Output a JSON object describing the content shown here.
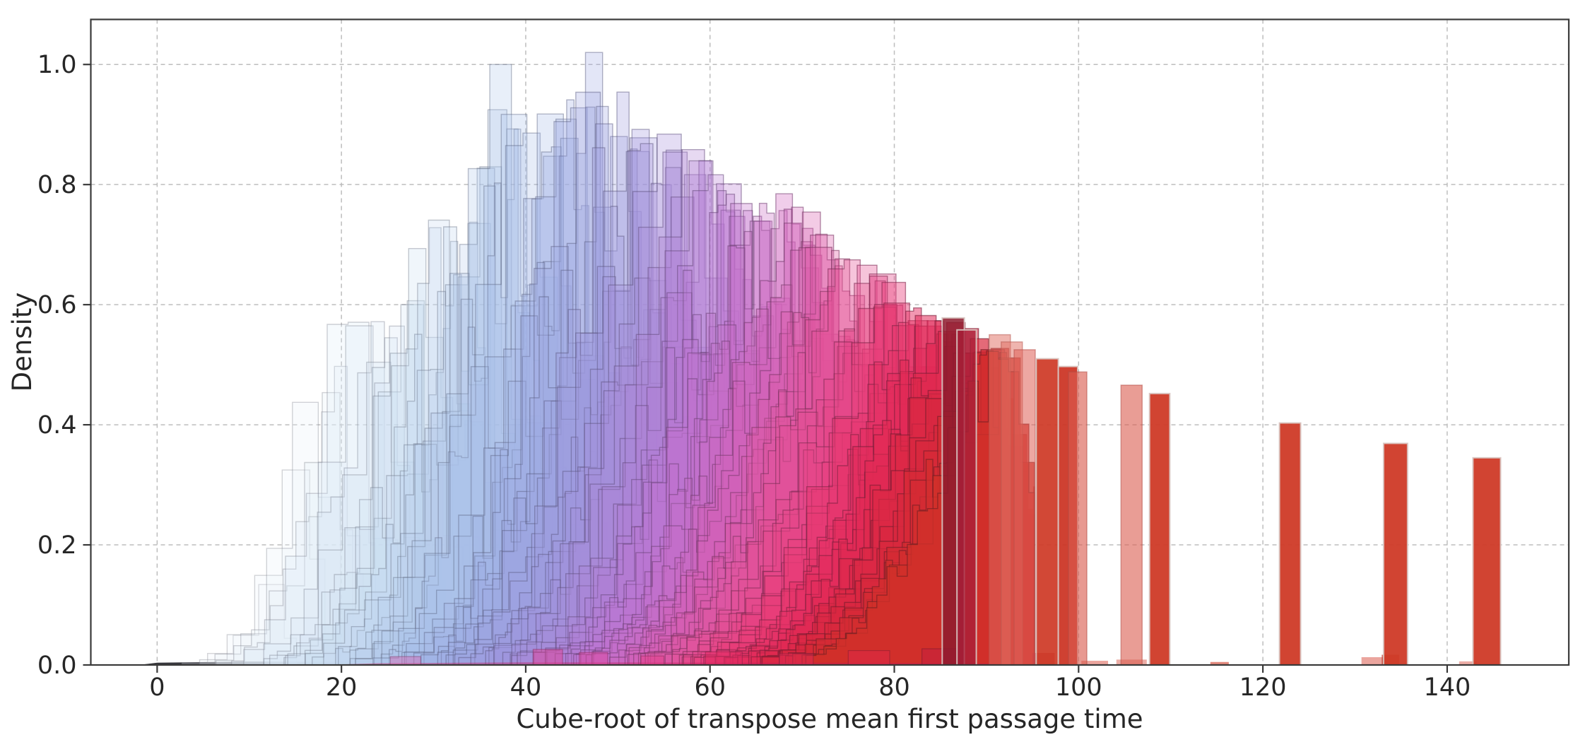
{
  "figure": {
    "background": "#ffffff",
    "spine_color": "#3a3a3a",
    "grid_color": "#bdbdbd",
    "text_color": "#262626"
  },
  "axes": {
    "xlabel": "Cube-root of transpose mean first passage time",
    "ylabel": "Density",
    "x_ticks": [
      0,
      20,
      40,
      60,
      80,
      100,
      120,
      140
    ],
    "x_tick_labels": [
      "0",
      "20",
      "40",
      "60",
      "80",
      "100",
      "120",
      "140"
    ],
    "y_ticks": [
      0.0,
      0.2,
      0.4,
      0.6,
      0.8,
      1.0
    ],
    "y_tick_labels": [
      "0.0",
      "0.2",
      "0.4",
      "0.6",
      "0.8",
      "1.0"
    ],
    "x_range": [
      -7.2,
      153.2
    ],
    "y_range": [
      0,
      1.075
    ],
    "grid": true,
    "grid_style": "dashed"
  },
  "chart_data": {
    "type": "histogram",
    "description": "Many overlapping translucent step-histogram densities, colored along a light-blue to purple to crimson-red colormap as the distribution mean increases; a few degenerate distributions appear as isolated brick-red bars at large x.",
    "n_series": 118,
    "colormap": [
      [
        0.0,
        "#eff5fb"
      ],
      [
        0.08,
        "#e2edf8"
      ],
      [
        0.16,
        "#d2e3f4"
      ],
      [
        0.25,
        "#bcd3ee"
      ],
      [
        0.33,
        "#a9c0e9"
      ],
      [
        0.41,
        "#9dabe3"
      ],
      [
        0.49,
        "#9f97dd"
      ],
      [
        0.56,
        "#ab86d8"
      ],
      [
        0.63,
        "#bd74d0"
      ],
      [
        0.7,
        "#d164bd"
      ],
      [
        0.77,
        "#e2539d"
      ],
      [
        0.84,
        "#e93d79"
      ],
      [
        0.9,
        "#e22a58"
      ],
      [
        0.95,
        "#d92740"
      ],
      [
        1.0,
        "#d03028"
      ]
    ],
    "envelope": [
      [
        4,
        0.004
      ],
      [
        7,
        0.012
      ],
      [
        9,
        0.03
      ],
      [
        11,
        0.07
      ],
      [
        13,
        0.16
      ],
      [
        15,
        0.3
      ],
      [
        17,
        0.42
      ],
      [
        19,
        0.5
      ],
      [
        21,
        0.63
      ],
      [
        23,
        0.6
      ],
      [
        25,
        0.55
      ],
      [
        27,
        0.62
      ],
      [
        29,
        0.7
      ],
      [
        30.5,
        0.81
      ],
      [
        32,
        0.73
      ],
      [
        33.5,
        0.77
      ],
      [
        35,
        0.85
      ],
      [
        36.5,
        0.94
      ],
      [
        37.6,
        1.0
      ],
      [
        38.7,
        1.0
      ],
      [
        40,
        0.93
      ],
      [
        41.5,
        0.945
      ],
      [
        43,
        0.905
      ],
      [
        45,
        0.955
      ],
      [
        47,
        1.01
      ],
      [
        48.5,
        0.985
      ],
      [
        50.5,
        0.965
      ],
      [
        52,
        0.945
      ],
      [
        54,
        0.905
      ],
      [
        56,
        0.885
      ],
      [
        58,
        0.868
      ],
      [
        60,
        0.862
      ],
      [
        62,
        0.845
      ],
      [
        64,
        0.822
      ],
      [
        66,
        0.8
      ],
      [
        68,
        0.783
      ],
      [
        70,
        0.763
      ],
      [
        72,
        0.745
      ],
      [
        74,
        0.728
      ],
      [
        76,
        0.702
      ],
      [
        78,
        0.672
      ],
      [
        80,
        0.636
      ],
      [
        82,
        0.614
      ],
      [
        84,
        0.595
      ],
      [
        86,
        0.578
      ],
      [
        88,
        0.562
      ],
      [
        90,
        0.548
      ],
      [
        92,
        0.534
      ],
      [
        94,
        0.52
      ]
    ],
    "series_model": {
      "seed": 1234,
      "mu_min": 13,
      "mu_max": 92.5,
      "mu_power": 0.72,
      "sigma_base": 3.0,
      "sigma_slope": 0.055,
      "sigma_right_factor": 0.42,
      "left_span_sigmas": 2.6,
      "right_span_sigmas": 1.6,
      "right_cutoff": 95.2,
      "bin_width_min": 0.7,
      "bin_width_max": 3.0,
      "forced_peaks": [
        {
          "mu": 38.0,
          "height": 1.0
        },
        {
          "mu": 47.2,
          "height": 1.02
        }
      ]
    },
    "outlier_bars": [
      {
        "x0": 85.2,
        "x1": 87.6,
        "height": 0.578,
        "color": "#8e1b2e",
        "alpha": 0.85
      },
      {
        "x0": 86.8,
        "x1": 88.9,
        "height": 0.558,
        "color": "#a81f38",
        "alpha": 0.78
      },
      {
        "x0": 90.3,
        "x1": 92.6,
        "height": 0.55,
        "color": "#e06b60",
        "alpha": 0.5
      },
      {
        "x0": 91.6,
        "x1": 93.9,
        "height": 0.538,
        "color": "#e06b60",
        "alpha": 0.5
      },
      {
        "x0": 93.0,
        "x1": 95.3,
        "height": 0.525,
        "color": "#df5f55",
        "alpha": 0.55
      },
      {
        "x0": 95.4,
        "x1": 97.8,
        "height": 0.51,
        "color": "#cf3a27",
        "alpha": 0.93
      },
      {
        "x0": 97.8,
        "x1": 99.9,
        "height": 0.497,
        "color": "#cb3322",
        "alpha": 0.93
      },
      {
        "x0": 98.9,
        "x1": 100.9,
        "height": 0.488,
        "color": "#da5b4e",
        "alpha": 0.62
      },
      {
        "x0": 104.6,
        "x1": 106.9,
        "height": 0.466,
        "color": "#da5b4e",
        "alpha": 0.6
      },
      {
        "x0": 107.7,
        "x1": 109.9,
        "height": 0.452,
        "color": "#cf3a27",
        "alpha": 0.95
      },
      {
        "x0": 121.8,
        "x1": 124.1,
        "height": 0.403,
        "color": "#cf3a27",
        "alpha": 0.95
      },
      {
        "x0": 133.1,
        "x1": 135.7,
        "height": 0.369,
        "color": "#cf3a27",
        "alpha": 0.95
      },
      {
        "x0": 142.8,
        "x1": 145.8,
        "height": 0.345,
        "color": "#cf3a27",
        "alpha": 0.95
      }
    ],
    "base_bumps": [
      {
        "x0": 95.0,
        "x1": 97.4,
        "height": 0.02,
        "color": "#b02336",
        "alpha": 0.7
      },
      {
        "x0": 100.3,
        "x1": 103.2,
        "height": 0.007,
        "color": "#da5b4e",
        "alpha": 0.55
      },
      {
        "x0": 104.1,
        "x1": 107.4,
        "height": 0.009,
        "color": "#da5b4e",
        "alpha": 0.5
      },
      {
        "x0": 114.3,
        "x1": 116.3,
        "height": 0.005,
        "color": "#cf3a27",
        "alpha": 0.6
      },
      {
        "x0": 130.7,
        "x1": 133.2,
        "height": 0.013,
        "color": "#da5b4e",
        "alpha": 0.55
      },
      {
        "x0": 132.9,
        "x1": 134.8,
        "height": 0.017,
        "color": "#bb3629",
        "alpha": 0.7
      },
      {
        "x0": 141.3,
        "x1": 143.2,
        "height": 0.006,
        "color": "#da5b4e",
        "alpha": 0.5
      }
    ],
    "bottom_mounds": [
      {
        "x0": 25.3,
        "x1": 28.6,
        "height": 0.014,
        "color": "#d96ab4",
        "alpha": 0.45
      },
      {
        "x0": 40.8,
        "x1": 44.0,
        "height": 0.026,
        "color": "#e0459a",
        "alpha": 0.5
      },
      {
        "x0": 45.8,
        "x1": 48.9,
        "height": 0.021,
        "color": "#e0459a",
        "alpha": 0.45
      },
      {
        "x0": 52.5,
        "x1": 55.0,
        "height": 0.015,
        "color": "#e23d87",
        "alpha": 0.45
      },
      {
        "x0": 59.5,
        "x1": 63.5,
        "height": 0.022,
        "color": "#e02a62",
        "alpha": 0.5
      },
      {
        "x0": 67.5,
        "x1": 71.2,
        "height": 0.019,
        "color": "#df2a55",
        "alpha": 0.5
      },
      {
        "x0": 75.0,
        "x1": 79.5,
        "height": 0.024,
        "color": "#dc2847",
        "alpha": 0.55
      },
      {
        "x0": 83.0,
        "x1": 86.8,
        "height": 0.027,
        "color": "#c51f3e",
        "alpha": 0.55
      }
    ],
    "baseline_wedge": {
      "color": "#0d0d14",
      "alpha": 0.82,
      "points": [
        [
          -2,
          0
        ],
        [
          0,
          0.0038
        ],
        [
          10,
          0.0058
        ],
        [
          22,
          0.005
        ],
        [
          35,
          0.004
        ],
        [
          50,
          0.002
        ],
        [
          62,
          0.001
        ],
        [
          70,
          0
        ]
      ]
    },
    "baseline_strip": {
      "color": "#c2185b",
      "alpha": 0.4,
      "points": [
        [
          18,
          0
        ],
        [
          24,
          0.003
        ],
        [
          40,
          0.0045
        ],
        [
          60,
          0.004
        ],
        [
          80,
          0.0035
        ],
        [
          90,
          0.0025
        ],
        [
          93,
          0
        ]
      ]
    }
  }
}
